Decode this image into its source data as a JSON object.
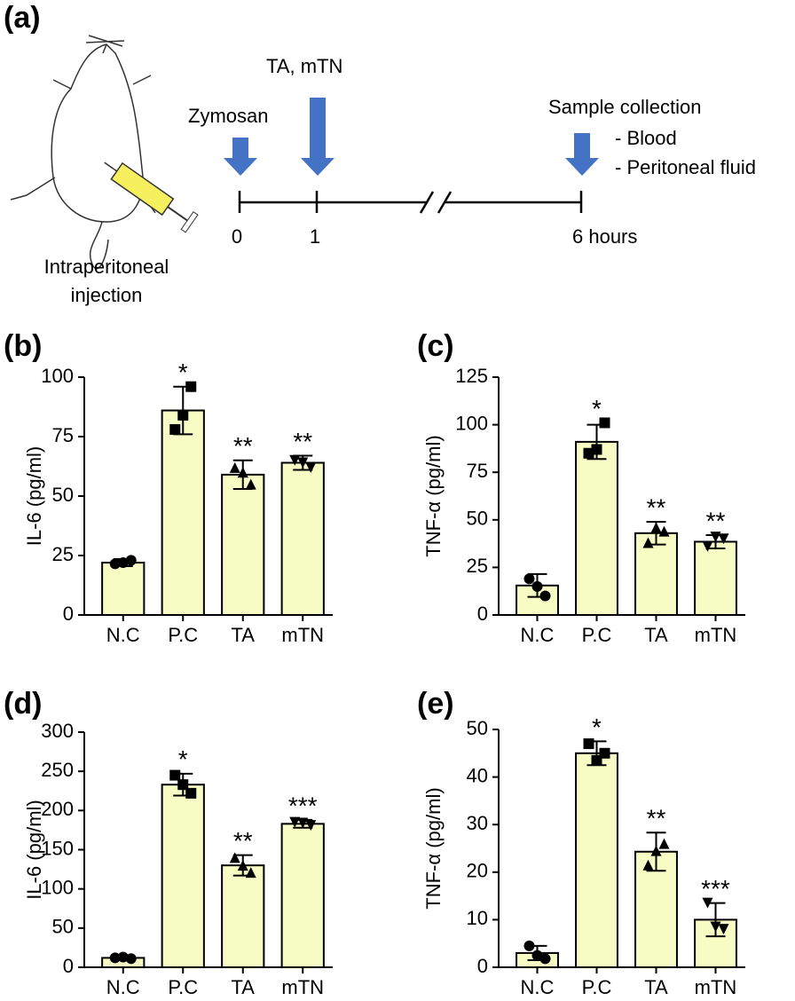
{
  "diagram": {
    "panel": "(a)",
    "injection_label": [
      "Intraperitoneal",
      "injection"
    ],
    "events": [
      {
        "label": "Zymosan",
        "time": "0"
      },
      {
        "label": "TA, mTN",
        "time": "1"
      },
      {
        "label": "Sample collection",
        "time": "6 hours",
        "details": [
          "- Blood",
          "- Peritoneal fluid"
        ]
      }
    ]
  },
  "chart_data": [
    {
      "type": "bar",
      "panel": "(b)",
      "ylabel": "IL-6 (pg/ml)",
      "categories": [
        "N.C",
        "P.C",
        "TA",
        "mTN"
      ],
      "values": [
        22,
        86,
        59,
        64
      ],
      "errors": [
        1.5,
        10,
        6,
        3
      ],
      "points": [
        [
          21.5,
          23,
          22
        ],
        [
          78,
          96,
          84
        ],
        [
          62,
          55,
          60
        ],
        [
          65,
          62,
          64
        ]
      ],
      "annotations": [
        null,
        "*",
        "**",
        "**"
      ],
      "color": "#f7fbc4",
      "ylim": [
        0,
        100
      ],
      "yticks": [
        0,
        25,
        50,
        75,
        100
      ]
    },
    {
      "type": "bar",
      "panel": "(c)",
      "ylabel": "TNF-α (pg/ml)",
      "categories": [
        "N.C",
        "P.C",
        "TA",
        "mTN"
      ],
      "values": [
        15.5,
        91,
        43,
        38.5
      ],
      "errors": [
        6,
        9,
        6,
        3.5
      ],
      "points": [
        [
          19,
          10,
          15
        ],
        [
          85,
          101,
          87
        ],
        [
          38,
          44,
          46
        ],
        [
          36,
          40,
          41
        ]
      ],
      "annotations": [
        null,
        "*",
        "**",
        "**"
      ],
      "color": "#f7fbc4",
      "ylim": [
        0,
        125
      ],
      "yticks": [
        0,
        25,
        50,
        75,
        100,
        125
      ]
    },
    {
      "type": "bar",
      "panel": "(d)",
      "ylabel": "IL-6 (pg/ml)",
      "categories": [
        "N.C",
        "P.C",
        "TA",
        "mTN"
      ],
      "values": [
        12,
        233,
        130,
        183
      ],
      "errors": [
        2,
        14,
        13,
        5
      ],
      "points": [
        [
          12,
          11,
          13
        ],
        [
          245,
          222,
          233
        ],
        [
          140,
          121,
          130
        ],
        [
          185,
          181,
          184
        ]
      ],
      "annotations": [
        null,
        "*",
        "**",
        "***"
      ],
      "color": "#f7fbc4",
      "ylim": [
        0,
        300
      ],
      "yticks": [
        0,
        50,
        100,
        150,
        200,
        250,
        300
      ]
    },
    {
      "type": "bar",
      "panel": "(e)",
      "ylabel": "TNF-α (pg/ml)",
      "categories": [
        "N.C",
        "P.C",
        "TA",
        "mTN"
      ],
      "values": [
        3,
        45,
        24.3,
        10
      ],
      "errors": [
        1.5,
        2.5,
        4,
        3.5
      ],
      "points": [
        [
          4.5,
          1.8,
          2.5
        ],
        [
          47,
          45,
          43.5
        ],
        [
          21.5,
          26,
          24.5
        ],
        [
          13.5,
          8,
          8.5
        ]
      ],
      "annotations": [
        null,
        "*",
        "**",
        "***"
      ],
      "color": "#f7fbc4",
      "ylim": [
        0,
        50
      ],
      "yticks": [
        0,
        10,
        20,
        30,
        40,
        50
      ]
    }
  ]
}
